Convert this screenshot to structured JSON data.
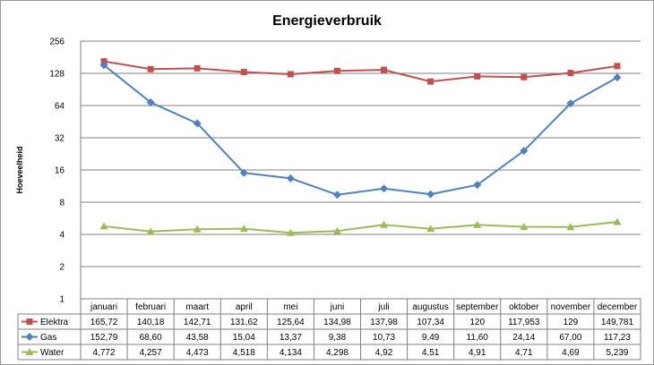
{
  "chart_data": {
    "type": "line",
    "title": "Energieverbruik",
    "ylabel": "Hoeveelheid",
    "xlabel": "",
    "y_scale": "log2",
    "ylim": [
      1,
      256
    ],
    "y_ticks": [
      "1",
      "2",
      "4",
      "8",
      "16",
      "32",
      "64",
      "128",
      "256"
    ],
    "y_tick_values": [
      1,
      2,
      4,
      8,
      16,
      32,
      64,
      128,
      256
    ],
    "grid": true,
    "legend": "data-table",
    "categories": [
      "januari",
      "februari",
      "maart",
      "april",
      "mei",
      "juni",
      "juli",
      "augustus",
      "september",
      "oktober",
      "november",
      "december"
    ],
    "series": [
      {
        "name": "Elektra",
        "color": "#c0504d",
        "marker": "square",
        "values": [
          165.72,
          140.18,
          142.71,
          131.62,
          125.64,
          134.98,
          137.98,
          107.34,
          120,
          117.953,
          129,
          149.781
        ],
        "labels": [
          "165,72",
          "140,18",
          "142,71",
          "131,62",
          "125,64",
          "134,98",
          "137,98",
          "107,34",
          "120",
          "117,953",
          "129",
          "149,781"
        ]
      },
      {
        "name": "Gas",
        "color": "#4f81bd",
        "marker": "diamond",
        "values": [
          152.79,
          68.6,
          43.58,
          15.04,
          13.37,
          9.38,
          10.73,
          9.49,
          11.6,
          24.14,
          67.0,
          117.23
        ],
        "labels": [
          "152,79",
          "68,60",
          "43,58",
          "15,04",
          "13,37",
          "9,38",
          "10,73",
          "9,49",
          "11,60",
          "24,14",
          "67,00",
          "117,23"
        ]
      },
      {
        "name": "Water",
        "color": "#9bbb59",
        "marker": "triangle",
        "values": [
          4.772,
          4.257,
          4.473,
          4.518,
          4.134,
          4.298,
          4.92,
          4.51,
          4.91,
          4.71,
          4.69,
          5.239
        ],
        "labels": [
          "4,772",
          "4,257",
          "4,473",
          "4,518",
          "4,134",
          "4,298",
          "4,92",
          "4,51",
          "4,91",
          "4,71",
          "4,69",
          "5,239"
        ]
      }
    ]
  }
}
